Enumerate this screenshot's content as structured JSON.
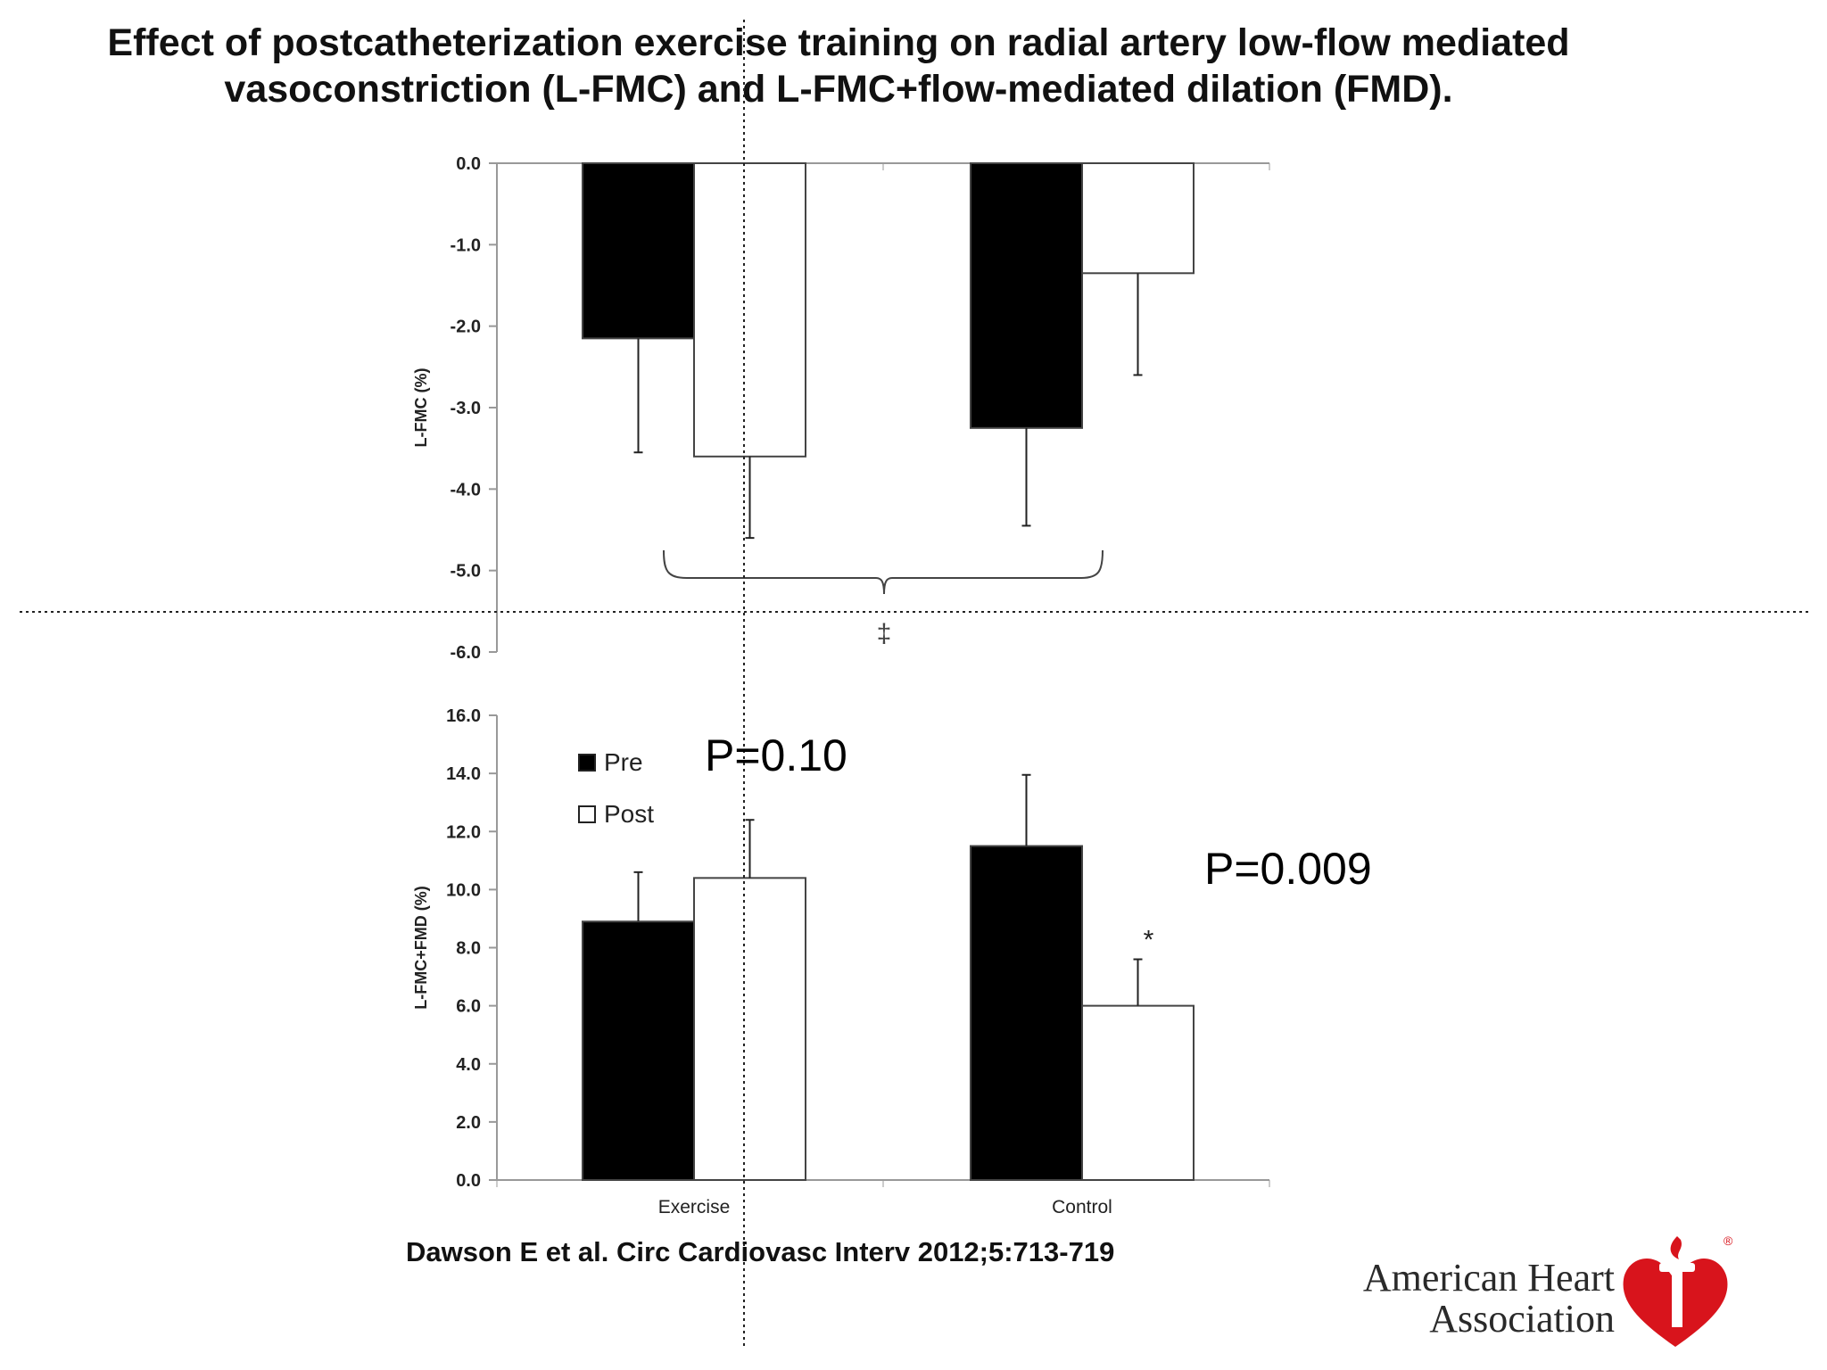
{
  "title": {
    "line1": "Effect of postcatheterization exercise training on radial artery low-flow mediated",
    "line2": "vasoconstriction (L-FMC) and L-FMC+flow-mediated dilation (FMD)."
  },
  "annotations": {
    "p_exercise": "P=0.10",
    "p_control": "P=0.009",
    "significance_top": "‡",
    "significance_bottom": "*"
  },
  "citation": "Dawson E et al. Circ Cardiovasc Interv 2012;5:713-719",
  "brand": {
    "line1": "American Heart",
    "line2": "Association",
    "registered_mark": "®",
    "logo_color": "#d8141c"
  },
  "colors": {
    "pre": "#000000",
    "post": "#ffffff",
    "axis": "#999999"
  },
  "chart_data": [
    {
      "type": "bar",
      "ylabel": "L-FMC (%)",
      "ylim": [
        -6.0,
        0.0
      ],
      "yticks": [
        "0.0",
        "-1.0",
        "-2.0",
        "-3.0",
        "-4.0",
        "-5.0",
        "-6.0"
      ],
      "ytick_values": [
        0,
        -1,
        -2,
        -3,
        -4,
        -5,
        -6
      ],
      "categories": [
        "Exercise",
        "Control"
      ],
      "series": [
        {
          "name": "Pre",
          "values": [
            -2.15,
            -3.25
          ],
          "errors": [
            1.4,
            1.2
          ]
        },
        {
          "name": "Post",
          "values": [
            -3.6,
            -1.35
          ],
          "errors": [
            1.0,
            1.25
          ]
        }
      ],
      "grid": false
    },
    {
      "type": "bar",
      "ylabel": "L-FMC+FMD (%)",
      "ylim": [
        0.0,
        16.0
      ],
      "yticks": [
        "0.0",
        "2.0",
        "4.0",
        "6.0",
        "8.0",
        "10.0",
        "12.0",
        "14.0",
        "16.0"
      ],
      "ytick_values": [
        0,
        2,
        4,
        6,
        8,
        10,
        12,
        14,
        16
      ],
      "categories": [
        "Exercise",
        "Control"
      ],
      "series": [
        {
          "name": "Pre",
          "values": [
            8.9,
            11.5
          ],
          "errors": [
            1.7,
            2.45
          ]
        },
        {
          "name": "Post",
          "values": [
            10.4,
            6.0
          ],
          "errors": [
            2.0,
            1.6
          ]
        }
      ],
      "legend": [
        "Pre",
        "Post"
      ],
      "legend_position": "top-left",
      "grid": false
    }
  ]
}
